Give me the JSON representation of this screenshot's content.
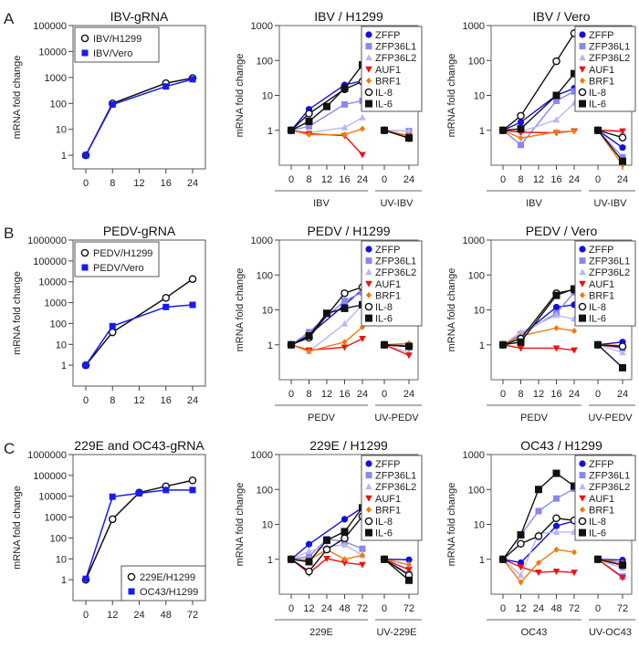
{
  "figure": {
    "row_labels": [
      "A",
      "B",
      "C"
    ],
    "colors": {
      "ZFFP": "#1010e0",
      "ZFP36L1": "#8888ee",
      "ZFP36L2": "#b8b8f4",
      "AUF1": "#ee1111",
      "BRF1": "#f07a10",
      "IL-8": "#111111",
      "IL-6": "#111111",
      "blue": "#1a1aee",
      "black": "#111111"
    }
  },
  "chart_data": [
    {
      "id": "A1",
      "row": "A",
      "type": "line",
      "title": "IBV-gRNA",
      "ylabel": "mRNA fold change",
      "yscale": "log",
      "yticks": [
        "1",
        "10",
        "100",
        "1000",
        "10000",
        "100000"
      ],
      "ylim": [
        0.3,
        100000
      ],
      "x": [
        0,
        8,
        12,
        16,
        24
      ],
      "xtick_labels": [
        "0",
        "8",
        "12",
        "16",
        "24"
      ],
      "legend_position": "top-left",
      "series": [
        {
          "name": "IBV/H1299",
          "marker": "open-circle",
          "color": "black",
          "x": [
            0,
            8,
            16,
            24
          ],
          "values": [
            1,
            100,
            600,
            950
          ]
        },
        {
          "name": "IBV/Vero",
          "marker": "square",
          "color": "blue",
          "x": [
            0,
            8,
            16,
            24
          ],
          "values": [
            1,
            90,
            450,
            850
          ]
        }
      ]
    },
    {
      "id": "A2",
      "row": "A",
      "type": "line",
      "title": "IBV / H1299",
      "ylabel": "mRNA fold change",
      "yscale": "log",
      "yticks": [
        "1",
        "10",
        "100",
        "1000"
      ],
      "ylim": [
        0.1,
        1000
      ],
      "groups": [
        {
          "label": "IBV",
          "x_labels": [
            "0",
            "8",
            "12",
            "16",
            "24"
          ]
        },
        {
          "label": "UV-IBV",
          "x_labels": [
            "0",
            "24"
          ]
        }
      ],
      "legend_position": "top-right",
      "series": [
        {
          "name": "ZFFP",
          "marker": "circle",
          "main": [
            1,
            4,
            null,
            20,
            26
          ],
          "uv": [
            1,
            0.6
          ]
        },
        {
          "name": "ZFP36L1",
          "marker": "square",
          "main": [
            1,
            1.3,
            null,
            5.5,
            7
          ],
          "uv": [
            1,
            0.95
          ]
        },
        {
          "name": "ZFP36L2",
          "marker": "triangle-up",
          "main": [
            1,
            0.85,
            null,
            1.2,
            2.3
          ],
          "uv": [
            1,
            0.95
          ]
        },
        {
          "name": "AUF1",
          "marker": "triangle-down",
          "main": [
            1,
            0.8,
            null,
            0.7,
            0.2
          ],
          "uv": [
            1,
            0.7
          ]
        },
        {
          "name": "BRF1",
          "marker": "diamond",
          "main": [
            1,
            0.75,
            null,
            0.75,
            1.1
          ],
          "uv": [
            1,
            0.7
          ]
        },
        {
          "name": "IL-8",
          "marker": "open-circle",
          "main": [
            1,
            3,
            null,
            15,
            25
          ],
          "uv": [
            1,
            0.6
          ]
        },
        {
          "name": "IL-6",
          "marker": "square-black",
          "main": [
            1,
            1.8,
            4.8,
            16,
            75
          ],
          "uv": [
            1,
            0.6
          ]
        }
      ]
    },
    {
      "id": "A3",
      "row": "A",
      "type": "line",
      "title": "IBV / Vero",
      "ylabel": "mRNA fold change",
      "yscale": "log",
      "yticks": [
        "1",
        "10",
        "100",
        "1000"
      ],
      "ylim": [
        0.1,
        1000
      ],
      "groups": [
        {
          "label": "IBV",
          "x_labels": [
            "0",
            "8",
            "12",
            "16",
            "24"
          ]
        },
        {
          "label": "UV-IBV",
          "x_labels": [
            "0",
            "24"
          ]
        }
      ],
      "legend_position": "top-right",
      "series": [
        {
          "name": "ZFFP",
          "marker": "circle",
          "main": [
            1,
            1.7,
            null,
            10,
            16
          ],
          "uv": [
            1,
            0.32
          ]
        },
        {
          "name": "ZFP36L1",
          "marker": "square",
          "main": [
            1,
            0.38,
            null,
            7,
            13
          ],
          "uv": [
            1,
            0.17
          ]
        },
        {
          "name": "ZFP36L2",
          "marker": "triangle-up",
          "main": [
            1,
            0.9,
            null,
            2,
            6
          ],
          "uv": [
            1,
            0.9
          ]
        },
        {
          "name": "AUF1",
          "marker": "triangle-down",
          "main": [
            1,
            0.88,
            null,
            0.85,
            0.95
          ],
          "uv": [
            1,
            0.95
          ]
        },
        {
          "name": "BRF1",
          "marker": "diamond",
          "main": [
            1,
            0.6,
            null,
            0.9,
            0.95
          ],
          "uv": [
            1,
            0.1
          ]
        },
        {
          "name": "IL-8",
          "marker": "open-circle",
          "main": [
            1,
            2.6,
            null,
            95,
            600
          ],
          "uv": [
            1,
            0.62
          ]
        },
        {
          "name": "IL-6",
          "marker": "square-black",
          "main": [
            1,
            1.1,
            null,
            10,
            42
          ],
          "uv": [
            1,
            0.13
          ]
        }
      ]
    },
    {
      "id": "B1",
      "row": "B",
      "type": "line",
      "title": "PEDV-gRNA",
      "ylabel": "mRNA fold change",
      "yscale": "log",
      "yticks": [
        "1",
        "10",
        "100",
        "1000",
        "10000",
        "100000",
        "1000000"
      ],
      "ylim": [
        0.1,
        1000000
      ],
      "x": [
        0,
        8,
        12,
        16,
        24
      ],
      "xtick_labels": [
        "0",
        "8",
        "12",
        "16",
        "24"
      ],
      "legend_position": "top-left",
      "series": [
        {
          "name": "PEDV/H1299",
          "marker": "open-circle",
          "color": "black",
          "x": [
            0,
            8,
            16,
            24
          ],
          "values": [
            1,
            38,
            1700,
            13500
          ]
        },
        {
          "name": "PEDV/Vero",
          "marker": "square",
          "color": "blue",
          "x": [
            0,
            8,
            16,
            24
          ],
          "values": [
            1,
            75,
            620,
            780
          ]
        }
      ]
    },
    {
      "id": "B2",
      "row": "B",
      "type": "line",
      "title": "PEDV / H1299",
      "ylabel": "mRNA fold change",
      "yscale": "log",
      "yticks": [
        "1",
        "10",
        "100",
        "1000"
      ],
      "ylim": [
        0.1,
        1000
      ],
      "groups": [
        {
          "label": "PEDV",
          "x_labels": [
            "0",
            "8",
            "12",
            "16",
            "24"
          ]
        },
        {
          "label": "UV-PEDV",
          "x_labels": [
            "0",
            "24"
          ]
        }
      ],
      "legend_position": "top-right",
      "series": [
        {
          "name": "ZFFP",
          "marker": "circle",
          "main": [
            1,
            1.9,
            null,
            14,
            38
          ],
          "uv": [
            1,
            0.9
          ]
        },
        {
          "name": "ZFP36L1",
          "marker": "square",
          "main": [
            1,
            2.3,
            null,
            18,
            32
          ],
          "uv": [
            1,
            0.95
          ]
        },
        {
          "name": "ZFP36L2",
          "marker": "triangle-up",
          "main": [
            1,
            0.65,
            null,
            4,
            14
          ],
          "uv": [
            1,
            0.6
          ]
        },
        {
          "name": "AUF1",
          "marker": "triangle-down",
          "main": [
            1,
            0.7,
            null,
            0.85,
            1.5
          ],
          "uv": [
            1,
            0.5
          ]
        },
        {
          "name": "BRF1",
          "marker": "diamond",
          "main": [
            1,
            0.65,
            null,
            1.2,
            3.2
          ],
          "uv": [
            1,
            1.1
          ]
        },
        {
          "name": "IL-8",
          "marker": "open-circle",
          "main": [
            1,
            1.6,
            null,
            30,
            45
          ],
          "uv": [
            1,
            0.9
          ]
        },
        {
          "name": "IL-6",
          "marker": "square-black",
          "main": [
            1,
            1.8,
            8,
            11,
            14
          ],
          "uv": [
            1,
            0.9
          ]
        }
      ]
    },
    {
      "id": "B3",
      "row": "B",
      "type": "line",
      "title": "PEDV / Vero",
      "ylabel": "mRNA fold change",
      "yscale": "log",
      "yticks": [
        "1",
        "10",
        "100",
        "1000"
      ],
      "ylim": [
        0.1,
        1000
      ],
      "groups": [
        {
          "label": "PEDV",
          "x_labels": [
            "0",
            "8",
            "12",
            "16",
            "24"
          ]
        },
        {
          "label": "UV-PEDV",
          "x_labels": [
            "0",
            "24"
          ]
        }
      ],
      "legend_position": "top-right",
      "series": [
        {
          "name": "ZFFP",
          "marker": "circle",
          "main": [
            1,
            1.8,
            null,
            12,
            14
          ],
          "uv": [
            1,
            1.2
          ]
        },
        {
          "name": "ZFP36L1",
          "marker": "square",
          "main": [
            1,
            2,
            null,
            8,
            32
          ],
          "uv": [
            1,
            0.8
          ]
        },
        {
          "name": "ZFP36L2",
          "marker": "triangle-up",
          "main": [
            1,
            2.3,
            null,
            7,
            5.5
          ],
          "uv": [
            1,
            0.6
          ]
        },
        {
          "name": "AUF1",
          "marker": "triangle-down",
          "main": [
            1,
            0.8,
            null,
            0.8,
            0.7
          ],
          "uv": [
            1,
            0.85
          ]
        },
        {
          "name": "BRF1",
          "marker": "diamond",
          "main": [
            1,
            1.8,
            null,
            3,
            2.5
          ],
          "uv": [
            1,
            0.95
          ]
        },
        {
          "name": "IL-8",
          "marker": "open-circle",
          "main": [
            1,
            1.5,
            null,
            30,
            38
          ],
          "uv": [
            1,
            0.9
          ]
        },
        {
          "name": "IL-6",
          "marker": "square-black",
          "main": [
            1,
            1.2,
            null,
            26,
            40
          ],
          "uv": [
            1,
            0.22
          ]
        }
      ]
    },
    {
      "id": "C1",
      "row": "C",
      "type": "line",
      "title": "229E and OC43-gRNA",
      "ylabel": "mRNA fold change",
      "yscale": "log",
      "yticks": [
        "1",
        "10",
        "100",
        "1000",
        "10000",
        "100000",
        "1000000"
      ],
      "ylim": [
        0.1,
        1000000
      ],
      "x": [
        0,
        12,
        24,
        48,
        72
      ],
      "xtick_labels": [
        "0",
        "12",
        "24",
        "48",
        "72"
      ],
      "legend_position": "bottom-right",
      "series": [
        {
          "name": "229E/H1299",
          "marker": "open-circle",
          "color": "black",
          "x": [
            0,
            12,
            24,
            48,
            72
          ],
          "values": [
            1,
            800,
            15000,
            30000,
            58000
          ]
        },
        {
          "name": "OC43/H1299",
          "marker": "square",
          "color": "blue",
          "x": [
            0,
            12,
            24,
            48,
            72
          ],
          "values": [
            1.1,
            9500,
            14000,
            20000,
            20000
          ]
        }
      ]
    },
    {
      "id": "C2",
      "row": "C",
      "type": "line",
      "title": "229E / H1299",
      "ylabel": "mRNA fold change",
      "yscale": "log",
      "yticks": [
        "1",
        "10",
        "100",
        "1000"
      ],
      "ylim": [
        0.1,
        1000
      ],
      "groups": [
        {
          "label": "229E",
          "x_labels": [
            "0",
            "12",
            "24",
            "48",
            "72"
          ]
        },
        {
          "label": "UV-229E",
          "x_labels": [
            "0",
            "72"
          ]
        }
      ],
      "legend_position": "top-right",
      "series": [
        {
          "name": "ZFFP",
          "marker": "circle",
          "main": [
            1,
            2.7,
            null,
            14,
            30
          ],
          "uv": [
            1,
            0.97
          ]
        },
        {
          "name": "ZFP36L1",
          "marker": "square",
          "main": [
            1,
            1.2,
            3.8,
            3.2,
            2
          ],
          "uv": [
            1,
            0.38
          ]
        },
        {
          "name": "ZFP36L2",
          "marker": "triangle-up",
          "main": [
            1,
            1.7,
            2.3,
            2.6,
            1.3
          ],
          "uv": [
            1,
            0.7
          ]
        },
        {
          "name": "AUF1",
          "marker": "triangle-down",
          "main": [
            1,
            0.4,
            1.05,
            0.8,
            0.7
          ],
          "uv": [
            1,
            0.5
          ]
        },
        {
          "name": "BRF1",
          "marker": "diamond",
          "main": [
            1,
            0.95,
            1.9,
            1,
            1.3
          ],
          "uv": [
            1,
            0.7
          ]
        },
        {
          "name": "IL-8",
          "marker": "open-circle",
          "main": [
            1,
            0.45,
            1.9,
            4,
            17
          ],
          "uv": [
            1,
            0.35
          ]
        },
        {
          "name": "IL-6",
          "marker": "square-black",
          "main": [
            1,
            0.85,
            3.5,
            6.2,
            30
          ],
          "uv": [
            1,
            0.25
          ]
        }
      ]
    },
    {
      "id": "C3",
      "row": "C",
      "type": "line",
      "title": "OC43 / H1299",
      "ylabel": "mRNA fold change",
      "yscale": "log",
      "yticks": [
        "1",
        "10",
        "100",
        "1000"
      ],
      "ylim": [
        0.1,
        1000
      ],
      "groups": [
        {
          "label": "OC43",
          "x_labels": [
            "0",
            "12",
            "24",
            "48",
            "72"
          ]
        },
        {
          "label": "UV-OC43",
          "x_labels": [
            "0",
            "72"
          ]
        }
      ],
      "legend_position": "top-right",
      "series": [
        {
          "name": "ZFFP",
          "marker": "circle",
          "main": [
            1,
            0.8,
            null,
            9,
            12.5
          ],
          "uv": [
            1,
            0.95
          ]
        },
        {
          "name": "ZFP36L1",
          "marker": "square",
          "main": [
            1,
            5,
            24,
            55,
            105
          ],
          "uv": [
            1,
            0.32
          ]
        },
        {
          "name": "ZFP36L2",
          "marker": "triangle-up",
          "main": [
            1,
            0.35,
            5.5,
            6,
            6
          ],
          "uv": [
            1,
            0.55
          ]
        },
        {
          "name": "AUF1",
          "marker": "triangle-down",
          "main": [
            1,
            0.6,
            0.42,
            0.45,
            0.42
          ],
          "uv": [
            1,
            0.3
          ]
        },
        {
          "name": "BRF1",
          "marker": "diamond",
          "main": [
            1,
            0.22,
            0.8,
            1.9,
            1.6
          ],
          "uv": [
            1,
            0.8
          ]
        },
        {
          "name": "IL-8",
          "marker": "open-circle",
          "main": [
            1,
            2.8,
            4.6,
            15,
            13
          ],
          "uv": [
            1,
            0.68
          ]
        },
        {
          "name": "IL-6",
          "marker": "square-black",
          "main": [
            1,
            5,
            100,
            290,
            125
          ],
          "uv": [
            1,
            0.68
          ]
        }
      ]
    }
  ]
}
